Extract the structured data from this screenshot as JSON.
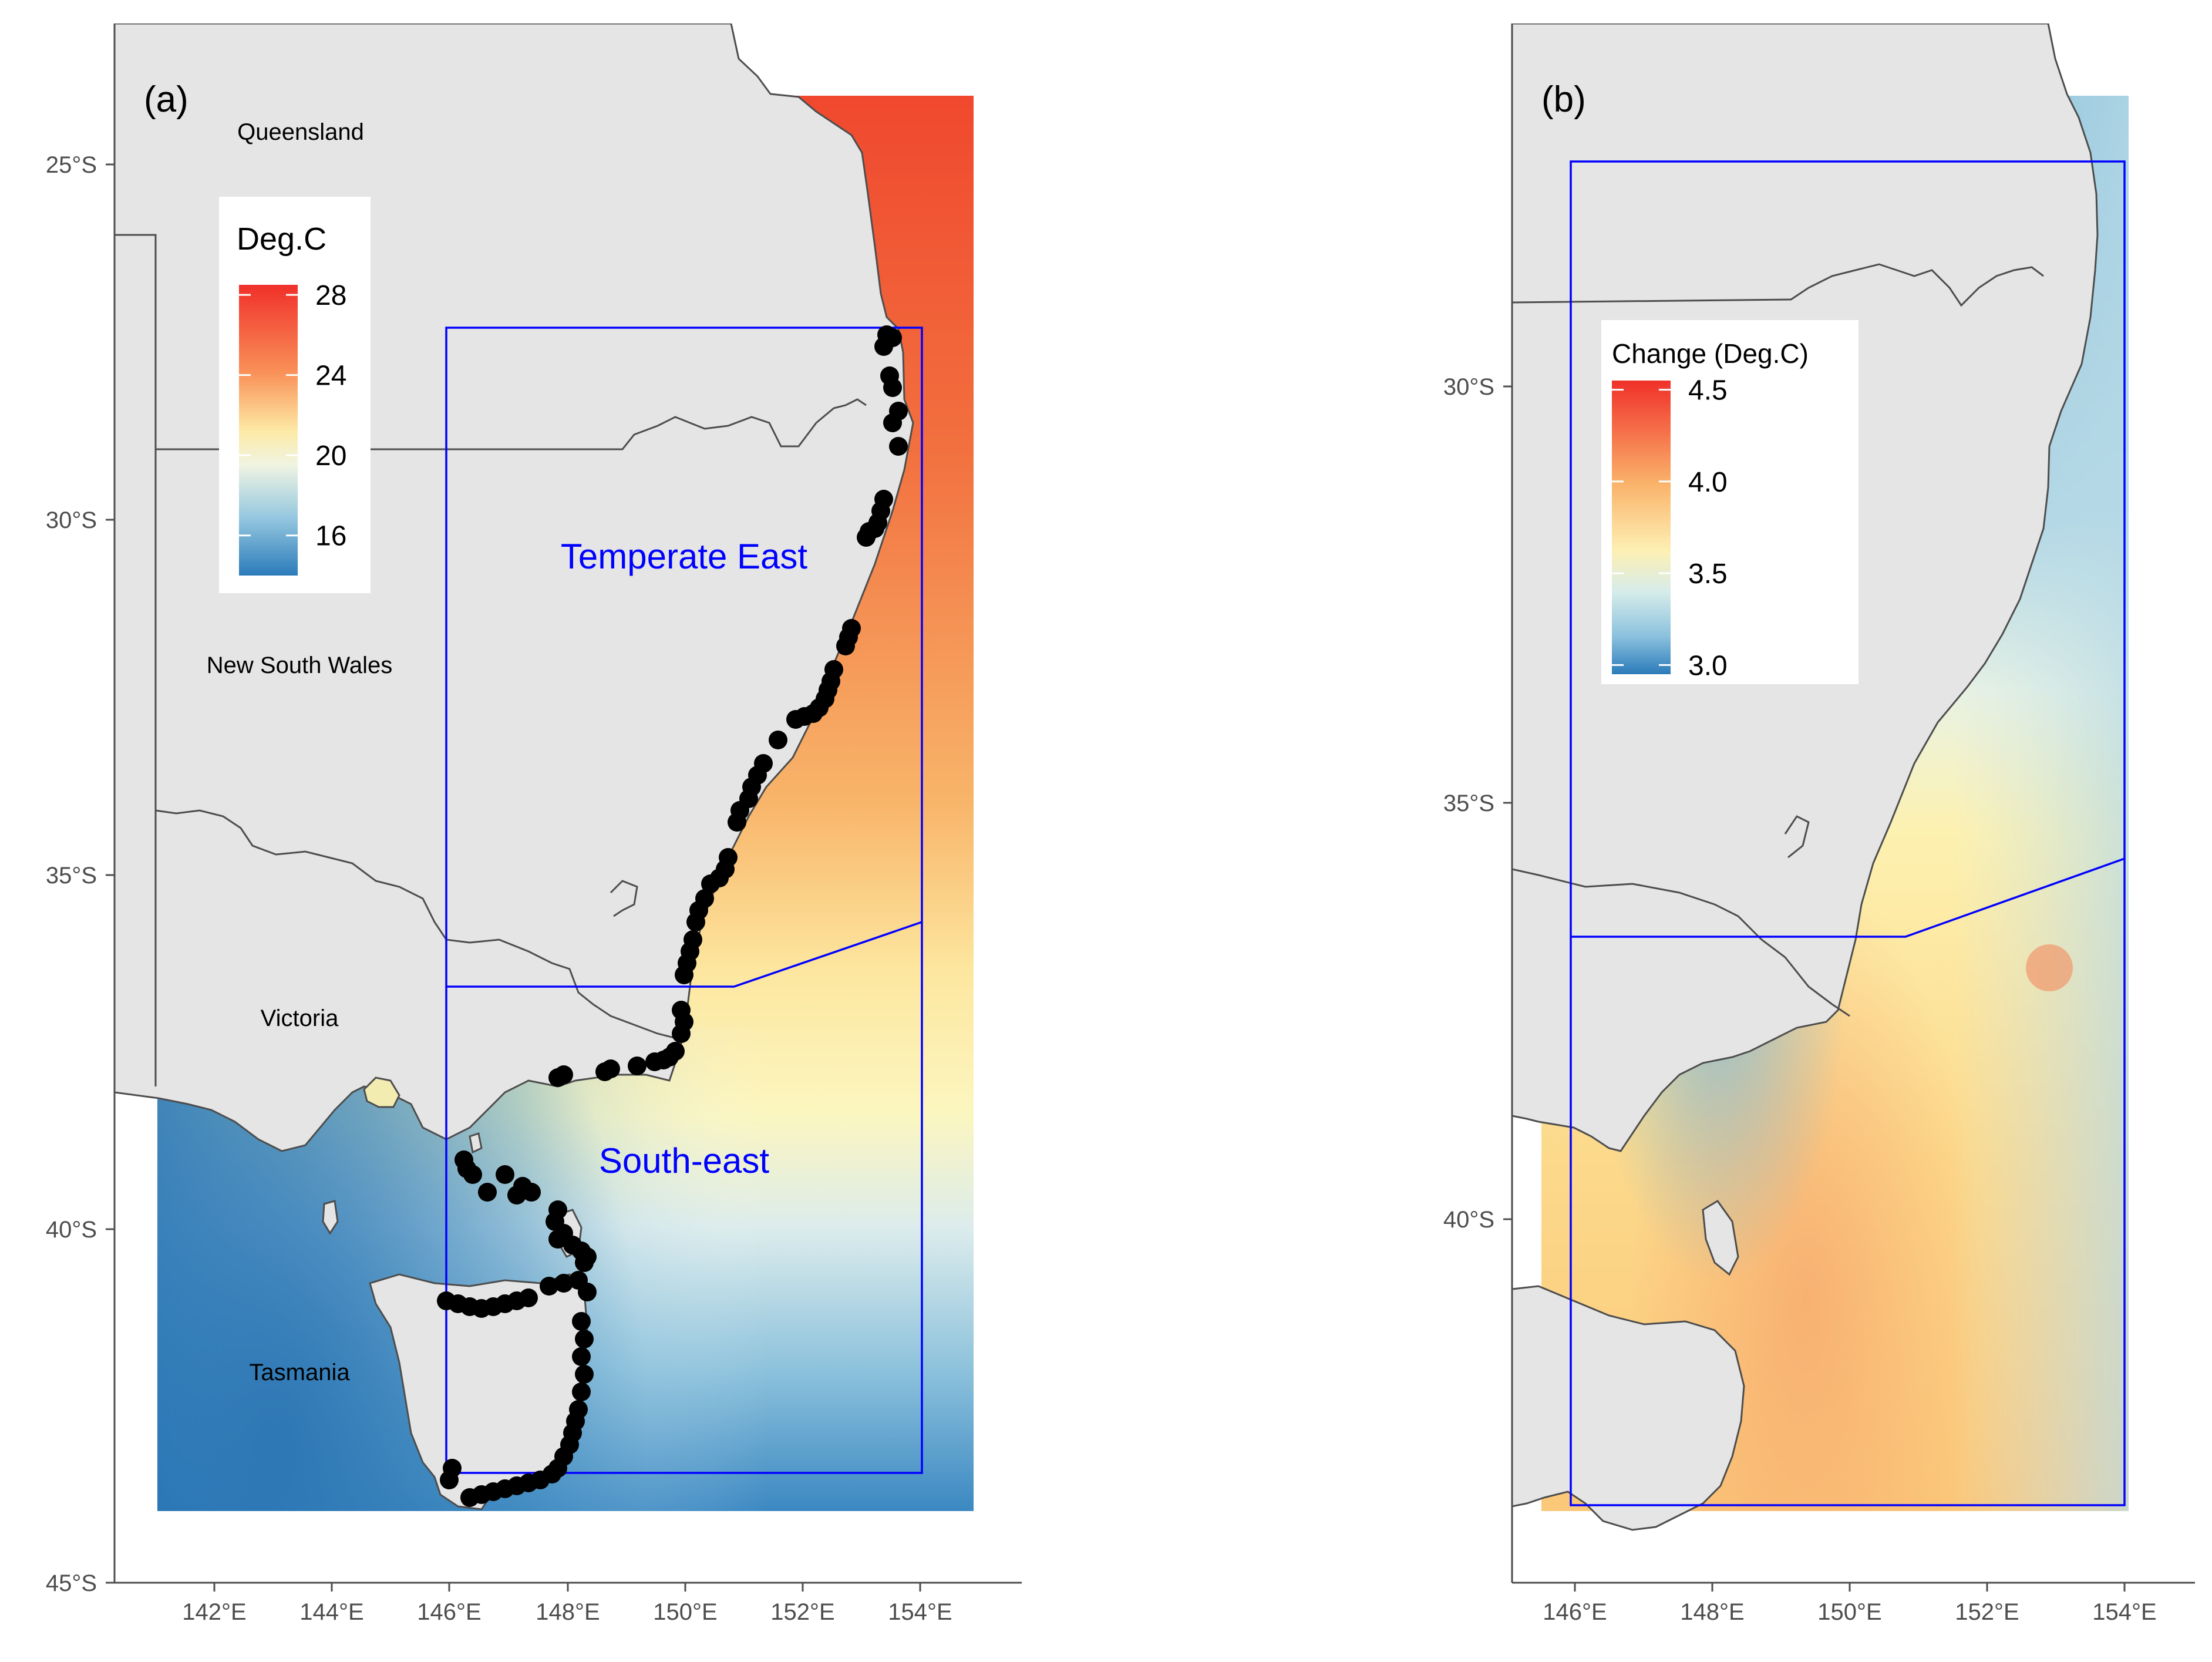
{
  "panel_a": {
    "label": "(a)",
    "y_ticks": [
      "25°S",
      "30°S",
      "35°S",
      "40°S",
      "45°S"
    ],
    "x_ticks": [
      "142°E",
      "144°E",
      "146°E",
      "148°E",
      "150°E",
      "152°E",
      "154°E"
    ],
    "states": [
      "Queensland",
      "New South Wales",
      "Victoria",
      "Tasmania"
    ],
    "regions": [
      "Temperate East",
      "South-east"
    ],
    "legend": {
      "title": "Deg.C",
      "ticks": [
        "28",
        "24",
        "20",
        "16"
      ],
      "range": [
        14,
        28.5
      ]
    }
  },
  "panel_b": {
    "label": "(b)",
    "y_ticks": [
      "30°S",
      "35°S",
      "40°S"
    ],
    "x_ticks": [
      "146°E",
      "148°E",
      "150°E",
      "152°E",
      "154°E"
    ],
    "legend": {
      "title": "Change (Deg.C)",
      "ticks": [
        "4.5",
        "4.0",
        "3.5",
        "3.0"
      ],
      "range": [
        2.95,
        4.55
      ]
    }
  },
  "colors": {
    "land": "#e5e5e5",
    "border": "#4d4d4d",
    "region_box": "#0000ff",
    "points": "#000000",
    "warm": "#f0482e",
    "mid": "#fff7c0",
    "cool": "#2b7bba"
  }
}
